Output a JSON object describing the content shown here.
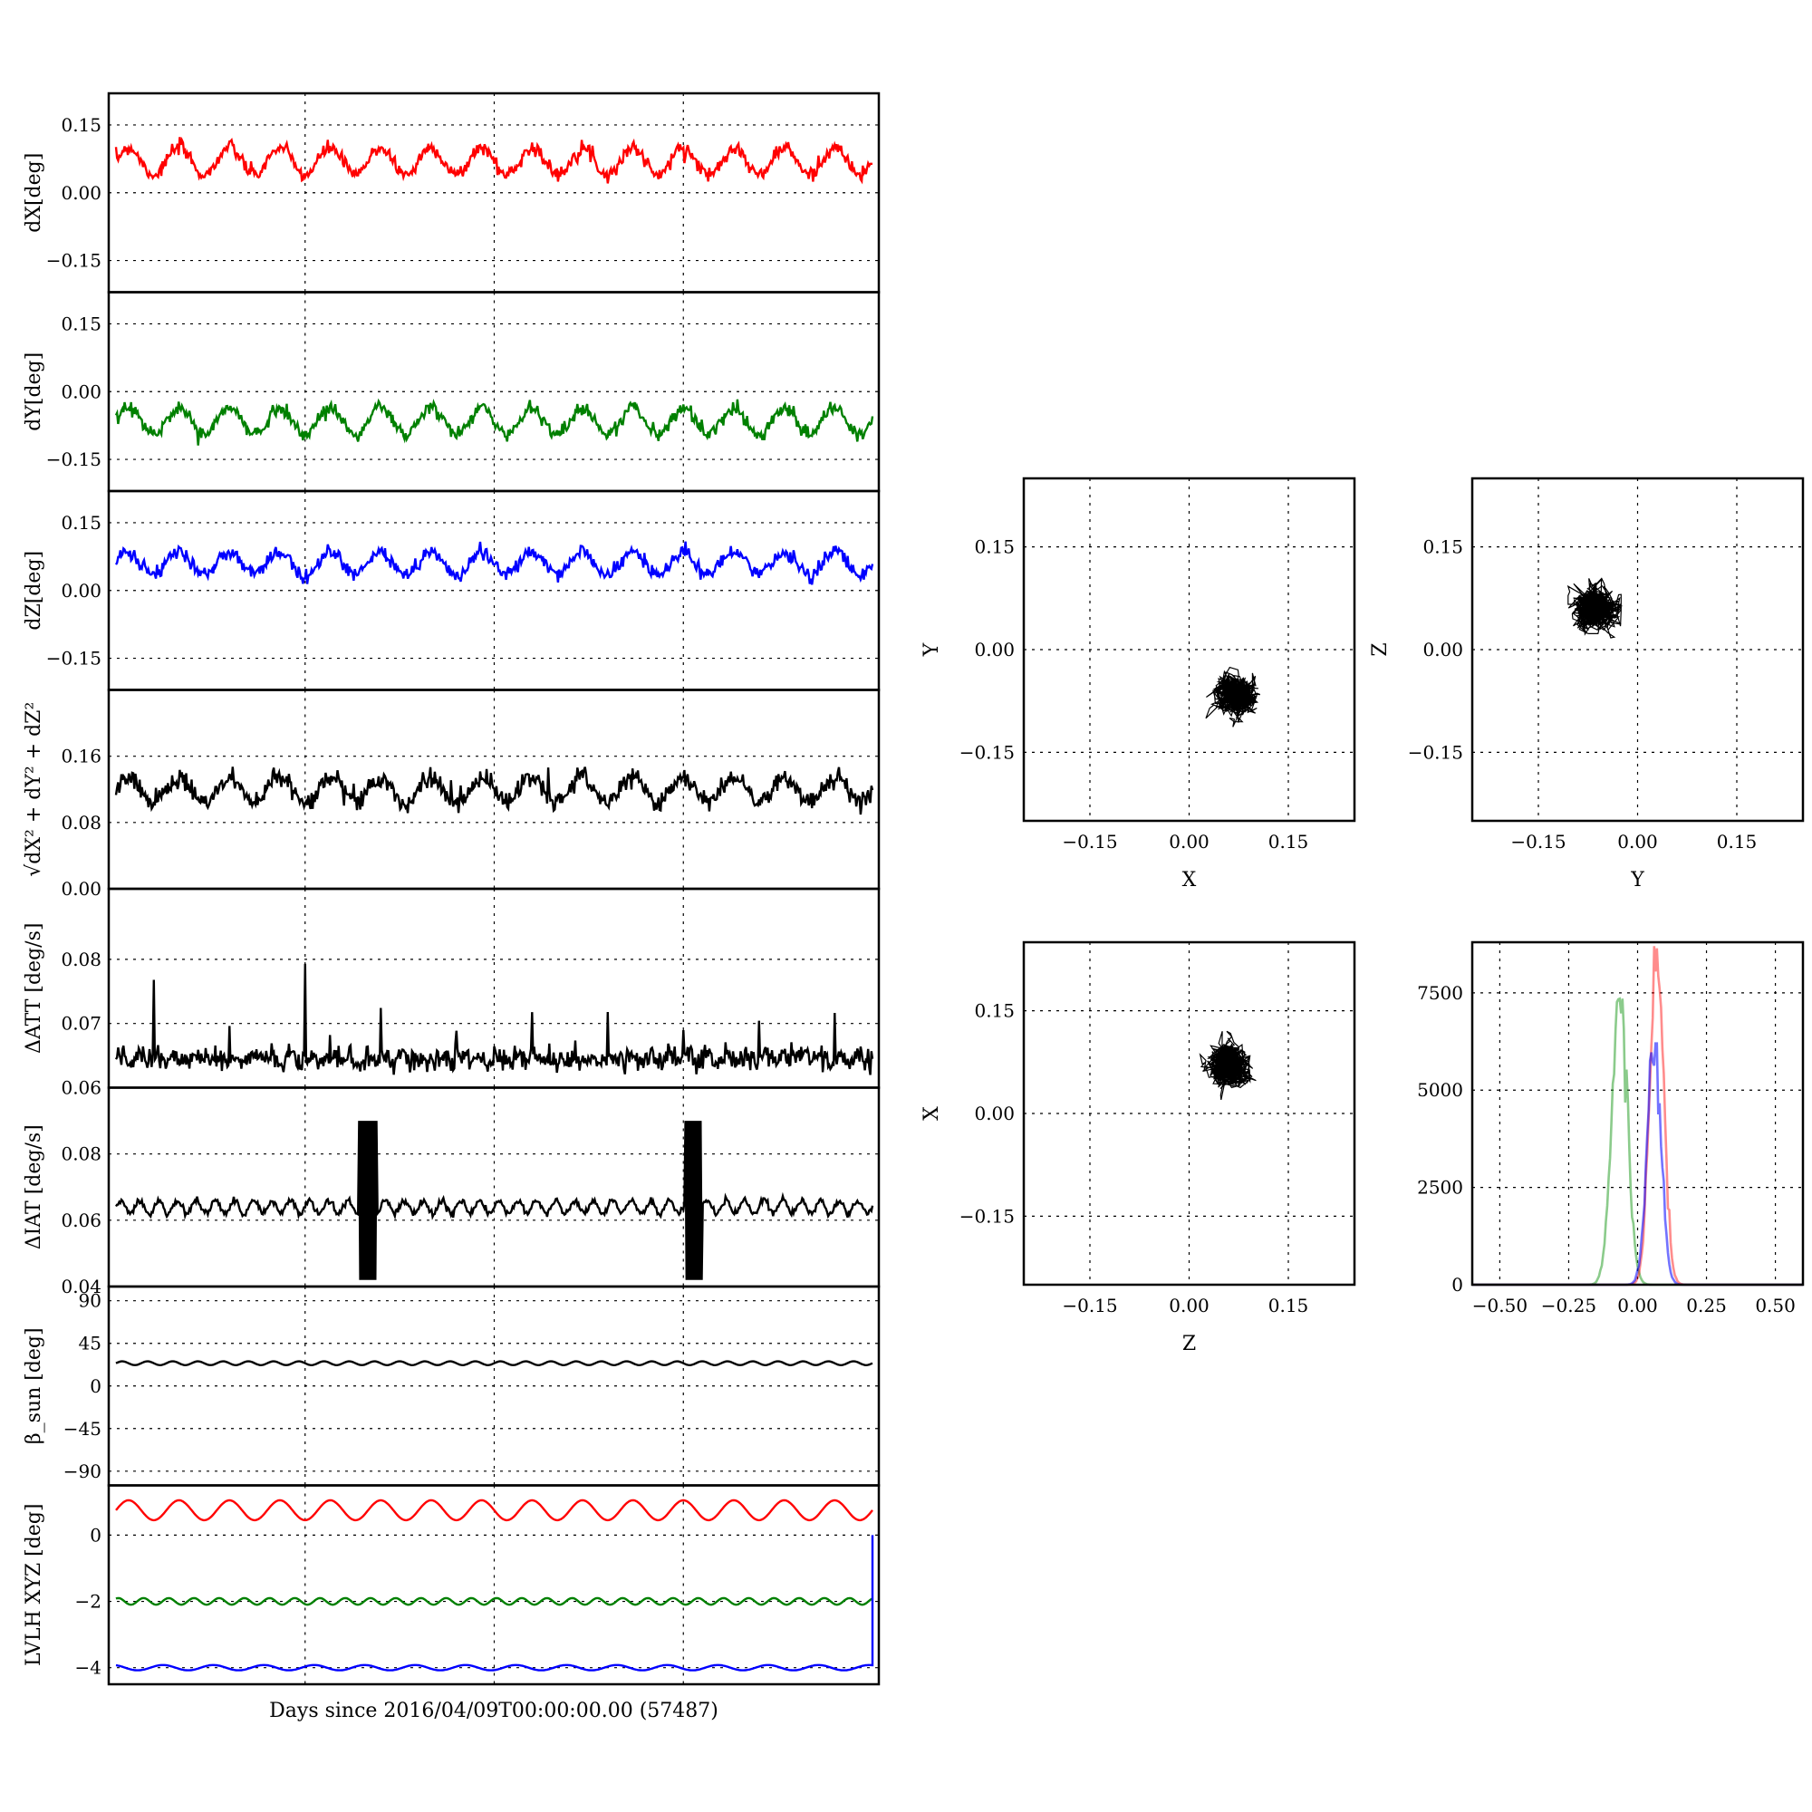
{
  "figure": {
    "xlabel": "Days since 2016/04/09T00:00:00.00 (57487)"
  },
  "chart_data": [
    {
      "type": "line",
      "panel": "time-dX",
      "ylabel": "dX[deg]",
      "ylim": [
        -0.22,
        0.22
      ],
      "yticks": [
        "0.15",
        "0.00",
        "−0.15"
      ],
      "yticks_values": [
        0.15,
        0,
        -0.15
      ],
      "series": [
        {
          "color": "#ff0000",
          "mean": 0.07,
          "amplitude": 0.03,
          "cycles": 15,
          "noise": 0.008
        }
      ]
    },
    {
      "type": "line",
      "panel": "time-dY",
      "ylabel": "dY[deg]",
      "ylim": [
        -0.22,
        0.22
      ],
      "yticks": [
        "0.15",
        "0.00",
        "−0.15"
      ],
      "yticks_values": [
        0.15,
        0,
        -0.15
      ],
      "series": [
        {
          "color": "#008000",
          "mean": -0.065,
          "amplitude": 0.03,
          "cycles": 15,
          "noise": 0.008
        }
      ]
    },
    {
      "type": "line",
      "panel": "time-dZ",
      "ylabel": "dZ[deg]",
      "ylim": [
        -0.22,
        0.22
      ],
      "yticks": [
        "0.15",
        "0.00",
        "−0.15"
      ],
      "yticks_values": [
        0.15,
        0,
        -0.15
      ],
      "series": [
        {
          "color": "#0000ff",
          "mean": 0.06,
          "amplitude": 0.025,
          "cycles": 15,
          "noise": 0.008
        }
      ]
    },
    {
      "type": "line",
      "panel": "time-norm",
      "ylabel": "√dX² + dY² + dZ²",
      "ylim": [
        0,
        0.24
      ],
      "yticks": [
        "0.16",
        "0.08",
        "0.00"
      ],
      "yticks_values": [
        0.16,
        0.08,
        0
      ],
      "series": [
        {
          "color": "#000000",
          "mean": 0.12,
          "amplitude": 0.015,
          "cycles": 15,
          "noise": 0.006
        }
      ]
    },
    {
      "type": "line",
      "panel": "time-datt",
      "ylabel": "ΔATT [deg/s]",
      "ylim": [
        0.06,
        0.091
      ],
      "yticks": [
        "0.08",
        "0.07",
        "0.06"
      ],
      "yticks_values": [
        0.08,
        0.07,
        0.06
      ],
      "series": [
        {
          "color": "#000000",
          "mean": 0.0645,
          "amplitude": 0.0005,
          "cycles": 40,
          "noise": 0.0009
        }
      ]
    },
    {
      "type": "line",
      "panel": "time-diat",
      "ylabel": "ΔIAT [deg/s]",
      "ylim": [
        0.04,
        0.1
      ],
      "yticks": [
        "0.08",
        "0.06",
        "0.04"
      ],
      "yticks_values": [
        0.08,
        0.06,
        0.04
      ],
      "series": [
        {
          "color": "#000000",
          "mean": 0.064,
          "amplitude": 0.002,
          "cycles": 40,
          "noise": 0.0005
        }
      ]
    },
    {
      "type": "line",
      "panel": "time-beta",
      "ylabel": "β_sun [deg]",
      "ylim": [
        -105,
        105
      ],
      "yticks": [
        "90",
        "45",
        "0",
        "−45",
        "−90"
      ],
      "yticks_values": [
        90,
        45,
        0,
        -45,
        -90
      ],
      "series": [
        {
          "color": "#000000",
          "mean": 24,
          "amplitude": 2,
          "cycles": 30,
          "noise": 0
        }
      ]
    },
    {
      "type": "line",
      "panel": "time-lvlh",
      "ylabel": "LVLH XYZ [deg]",
      "ylim": [
        -4.5,
        1.5
      ],
      "yticks": [
        "0",
        "−2",
        "−4"
      ],
      "yticks_values": [
        0,
        -2,
        -4
      ],
      "series": [
        {
          "color": "#ff0000",
          "mean": 0.75,
          "amplitude": 0.3,
          "cycles": 15,
          "noise": 0
        },
        {
          "color": "#008000",
          "mean": -2.0,
          "amplitude": 0.1,
          "cycles": 30,
          "noise": 0
        },
        {
          "color": "#0000ff",
          "mean": -4.0,
          "amplitude": 0.08,
          "cycles": 15,
          "noise": 0
        }
      ]
    },
    {
      "type": "scatter",
      "panel": "scatter-xy",
      "xlabel": "X",
      "ylabel": "Y",
      "xlim": [
        -0.25,
        0.25
      ],
      "ylim": [
        -0.25,
        0.25
      ],
      "xticks": [
        "−0.15",
        "0.00",
        "0.15"
      ],
      "yticks": [
        "0.15",
        "0.00",
        "−0.15"
      ],
      "center": [
        0.07,
        -0.065
      ],
      "spread": [
        0.028,
        0.025
      ]
    },
    {
      "type": "scatter",
      "panel": "scatter-yz",
      "xlabel": "Y",
      "ylabel": "Z",
      "xlim": [
        -0.25,
        0.25
      ],
      "ylim": [
        -0.25,
        0.25
      ],
      "xticks": [
        "−0.15",
        "0.00",
        "0.15"
      ],
      "yticks": [
        "0.15",
        "0.00",
        "−0.15"
      ],
      "center": [
        -0.065,
        0.06
      ],
      "spread": [
        0.02,
        0.022
      ]
    },
    {
      "type": "scatter",
      "panel": "scatter-zx",
      "xlabel": "Z",
      "ylabel": "X",
      "xlim": [
        -0.25,
        0.25
      ],
      "ylim": [
        -0.25,
        0.25
      ],
      "xticks": [
        "−0.15",
        "0.00",
        "0.15"
      ],
      "yticks": [
        "0.15",
        "0.00",
        "−0.15"
      ],
      "center": [
        0.06,
        0.07
      ],
      "spread": [
        0.022,
        0.025
      ]
    },
    {
      "type": "line",
      "panel": "histogram",
      "xlim": [
        -0.6,
        0.6
      ],
      "ylim": [
        0,
        8800
      ],
      "xticks": [
        "−0.50",
        "−0.25",
        "0.00",
        "0.25",
        "0.50"
      ],
      "xticks_values": [
        -0.5,
        -0.25,
        0,
        0.25,
        0.5
      ],
      "yticks": [
        "7500",
        "5000",
        "2500",
        "0"
      ],
      "yticks_values": [
        7500,
        5000,
        2500,
        0
      ],
      "series": [
        {
          "color": "#2ca02c",
          "opacity": 0.55,
          "center": -0.065,
          "sigma": 0.028,
          "peak": 7350
        },
        {
          "color": "#ff0000",
          "opacity": 0.45,
          "center": 0.07,
          "sigma": 0.025,
          "peak": 8700
        },
        {
          "color": "#0000ff",
          "opacity": 0.55,
          "center": 0.06,
          "sigma": 0.025,
          "peak": 6200
        }
      ]
    }
  ]
}
